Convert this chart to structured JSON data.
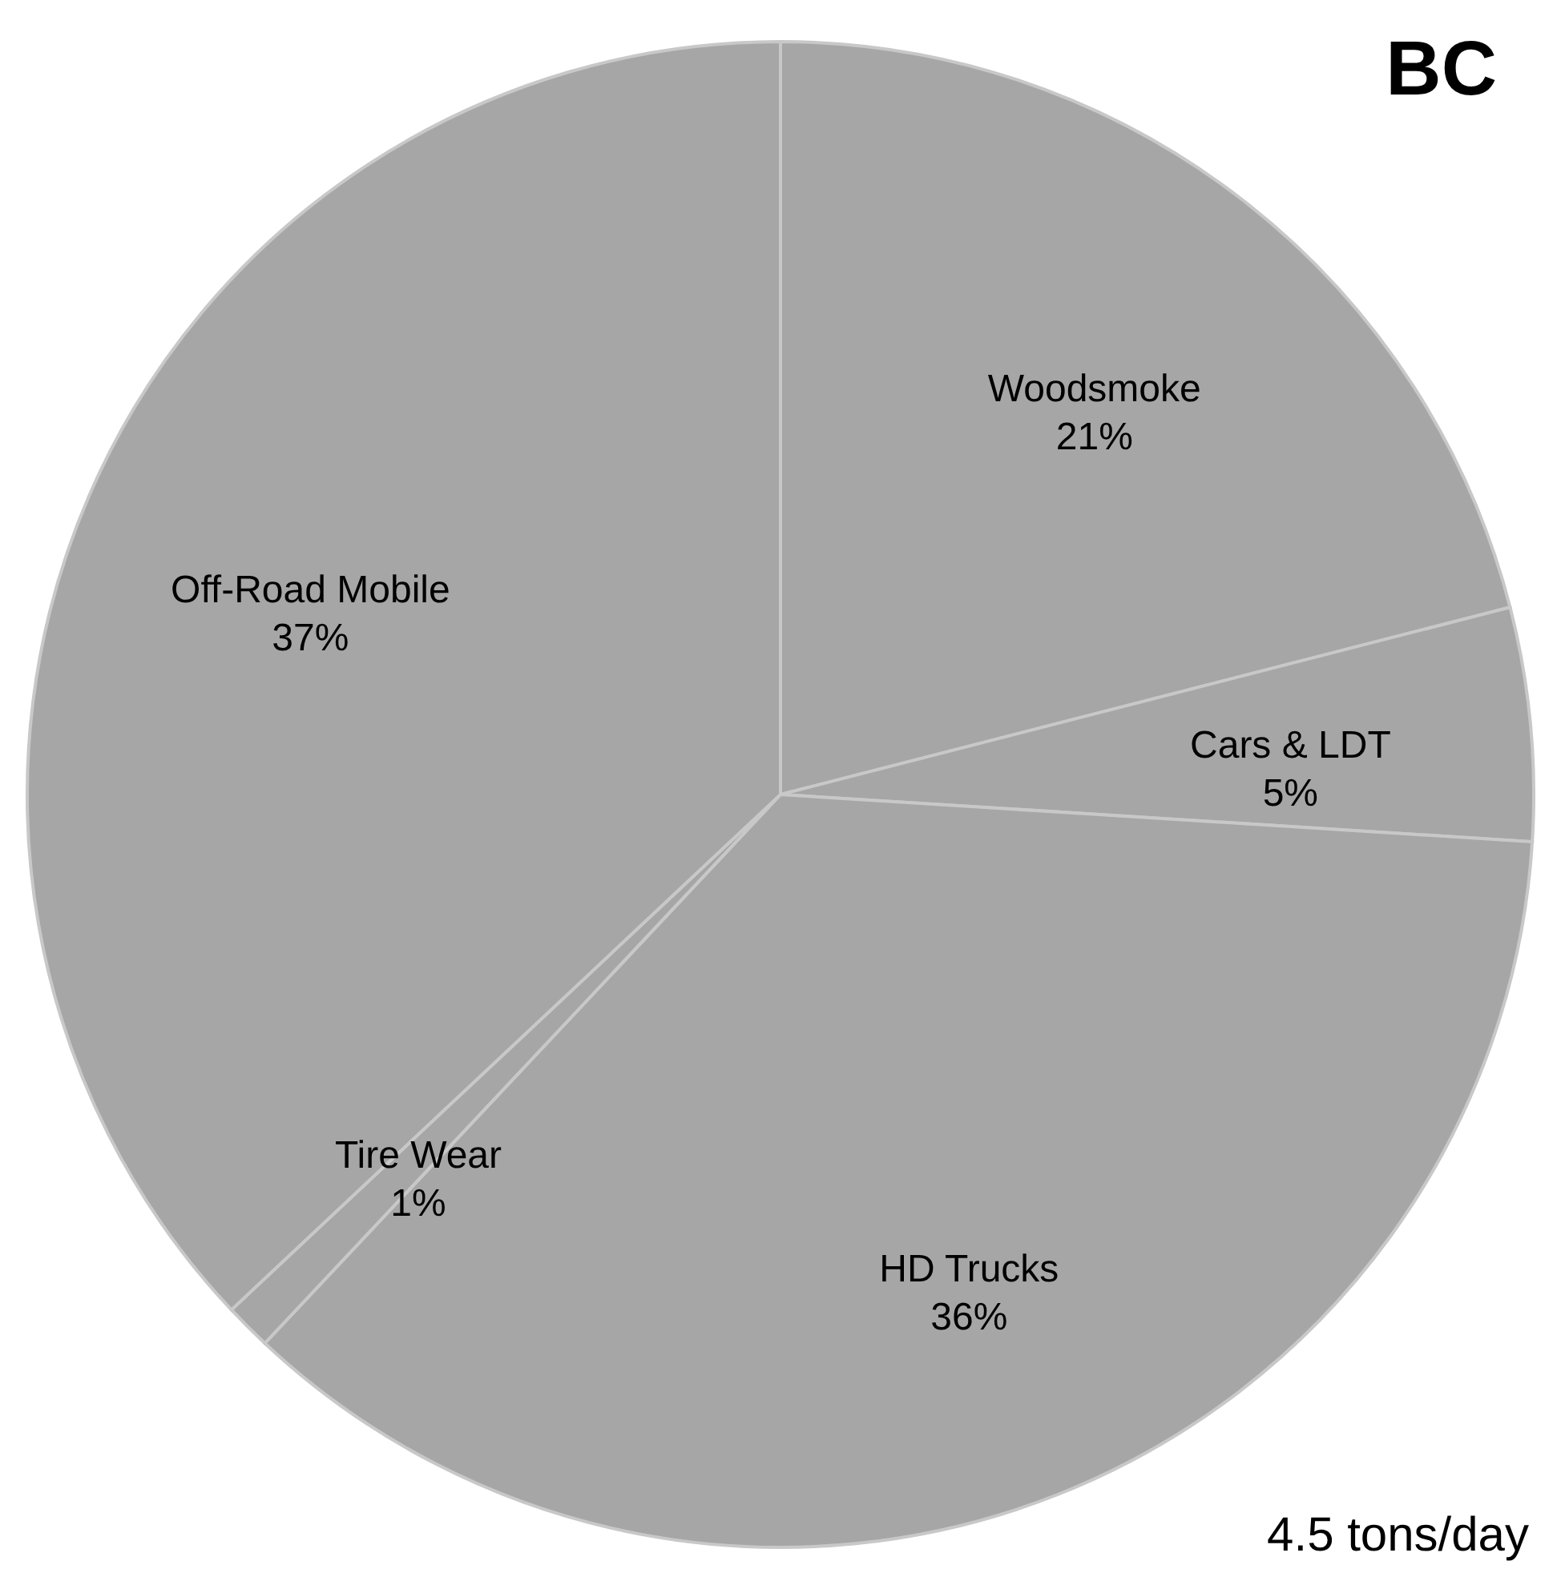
{
  "chart_data": {
    "type": "pie",
    "title": "BC",
    "categories": [
      "Woodsmoke",
      "Cars & LDT",
      "HD Trucks",
      "Tire Wear",
      "Off-Road Mobile"
    ],
    "values": [
      21,
      5,
      36,
      1,
      37
    ],
    "value_labels": [
      "21%",
      "5%",
      "36%",
      "1%",
      "37%"
    ],
    "colors": [
      "#a6a6a6",
      "#a6a6a6",
      "#a6a6a6",
      "#a6a6a6",
      "#a6a6a6"
    ],
    "annotations": [
      "4.5 tons/day"
    ]
  }
}
